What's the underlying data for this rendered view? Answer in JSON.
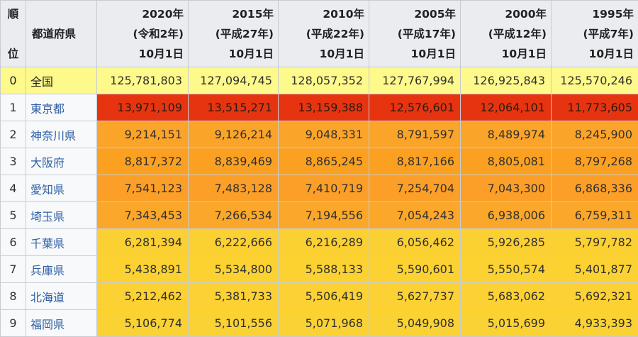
{
  "table": {
    "header": {
      "rank_label_top": "順",
      "rank_label_bottom": "位",
      "pref_label": "都道府県",
      "years": [
        {
          "year": "2020年",
          "era": "(令和2年)",
          "date": "10月1日"
        },
        {
          "year": "2015年",
          "era": "(平成27年)",
          "date": "10月1日"
        },
        {
          "year": "2010年",
          "era": "(平成22年)",
          "date": "10月1日"
        },
        {
          "year": "2005年",
          "era": "(平成17年)",
          "date": "10月1日"
        },
        {
          "year": "2000年",
          "era": "(平成12年)",
          "date": "10月1日"
        },
        {
          "year": "1995年",
          "era": "(平成7年)",
          "date": "10月1日"
        }
      ]
    },
    "rows": [
      {
        "rank": "0",
        "pref": "全国",
        "values": [
          "125,781,803",
          "127,094,745",
          "128,057,352",
          "127,767,994",
          "126,925,843",
          "125,570,246"
        ]
      },
      {
        "rank": "1",
        "pref": "東京都",
        "values": [
          "13,971,109",
          "13,515,271",
          "13,159,388",
          "12,576,601",
          "12,064,101",
          "11,773,605"
        ]
      },
      {
        "rank": "2",
        "pref": "神奈川県",
        "values": [
          "9,214,151",
          "9,126,214",
          "9,048,331",
          "8,791,597",
          "8,489,974",
          "8,245,900"
        ]
      },
      {
        "rank": "3",
        "pref": "大阪府",
        "values": [
          "8,817,372",
          "8,839,469",
          "8,865,245",
          "8,817,166",
          "8,805,081",
          "8,797,268"
        ]
      },
      {
        "rank": "4",
        "pref": "愛知県",
        "values": [
          "7,541,123",
          "7,483,128",
          "7,410,719",
          "7,254,704",
          "7,043,300",
          "6,868,336"
        ]
      },
      {
        "rank": "5",
        "pref": "埼玉県",
        "values": [
          "7,343,453",
          "7,266,534",
          "7,194,556",
          "7,054,243",
          "6,938,006",
          "6,759,311"
        ]
      },
      {
        "rank": "6",
        "pref": "千葉県",
        "values": [
          "6,281,394",
          "6,222,666",
          "6,216,289",
          "6,056,462",
          "5,926,285",
          "5,797,782"
        ]
      },
      {
        "rank": "7",
        "pref": "兵庫県",
        "values": [
          "5,438,891",
          "5,534,800",
          "5,588,133",
          "5,590,601",
          "5,550,574",
          "5,401,877"
        ]
      },
      {
        "rank": "8",
        "pref": "北海道",
        "values": [
          "5,212,462",
          "5,381,733",
          "5,506,419",
          "5,627,737",
          "5,683,062",
          "5,692,321"
        ]
      },
      {
        "rank": "9",
        "pref": "福岡県",
        "values": [
          "5,106,774",
          "5,101,556",
          "5,071,968",
          "5,049,908",
          "5,015,699",
          "4,933,393"
        ]
      }
    ],
    "colors": {
      "header_bg": "#eaecf0",
      "total_row": "#fdf98a",
      "rank_1": "#e63410",
      "rank_2_5": "#fba42a",
      "rank_6_9": "#fbd033",
      "link": "#2f5fa5"
    }
  }
}
